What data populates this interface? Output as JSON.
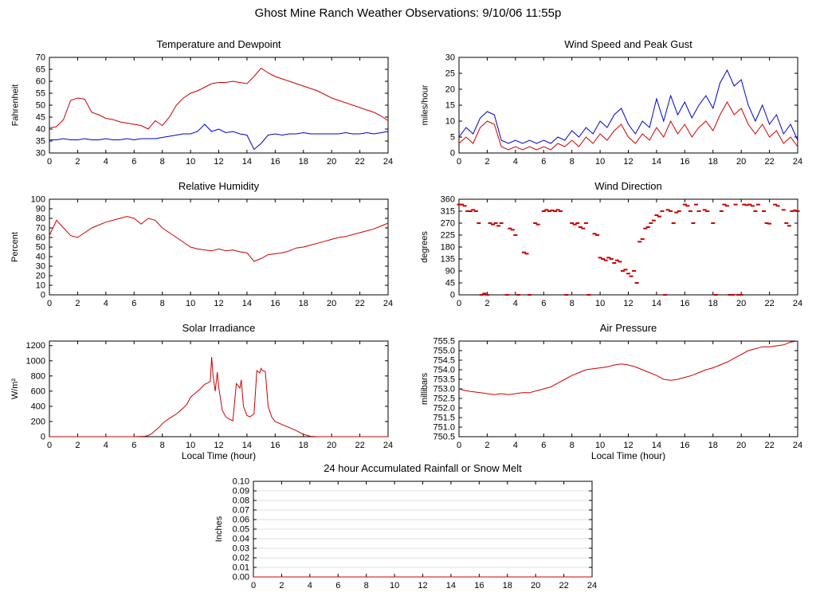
{
  "page_title": "Ghost Mine Ranch Weather Observations: 9/10/06 11:55p",
  "colors": {
    "red_series": "#cc0000",
    "blue_series": "#0000cc",
    "axis": "#000000",
    "grid": "#c0c0c0"
  },
  "chart_data": [
    {
      "id": "temperature-dewpoint",
      "type": "line",
      "title": "Temperature and Dewpoint",
      "ylabel": "Fahrenheit",
      "xlabel": "",
      "xlim": [
        0,
        24
      ],
      "ylim": [
        30,
        70
      ],
      "xticks": [
        0,
        2,
        4,
        6,
        8,
        10,
        12,
        14,
        16,
        18,
        20,
        22,
        24
      ],
      "yticks": [
        30,
        35,
        40,
        45,
        50,
        55,
        60,
        65,
        70
      ],
      "ydecimals": 0,
      "series": [
        {
          "name": "Temperature",
          "color": "#cc0000",
          "xstep": 0.5,
          "y": [
            40.5,
            41,
            44,
            52,
            53,
            52.5,
            47,
            46,
            44.5,
            44,
            43,
            42.5,
            42,
            41.5,
            40,
            43.5,
            41.5,
            45,
            50,
            53,
            55,
            56,
            57.5,
            59,
            59.5,
            59.5,
            60,
            59.5,
            59,
            62,
            65.5,
            63.5,
            62,
            61,
            60,
            59,
            58,
            57,
            56,
            54.5,
            53,
            52,
            51,
            50,
            49,
            48,
            47,
            45.5,
            43.5
          ]
        },
        {
          "name": "Dewpoint",
          "color": "#0000cc",
          "xstep": 0.5,
          "y": [
            35.5,
            35.5,
            36,
            35.5,
            35.5,
            36,
            35.5,
            35.5,
            36,
            35.5,
            35.5,
            36,
            35.5,
            36,
            36,
            36,
            36.5,
            37,
            37.5,
            38,
            38,
            39,
            42,
            39,
            40,
            38.5,
            39,
            38,
            37.5,
            31.5,
            34,
            37.5,
            38,
            37.5,
            38,
            38,
            38.5,
            38,
            38,
            38,
            38,
            38,
            38.5,
            38,
            38,
            38.5,
            38,
            38.5,
            39
          ]
        }
      ]
    },
    {
      "id": "wind-speed-gust",
      "type": "line",
      "title": "Wind Speed and Peak Gust",
      "ylabel": "miles/hour",
      "xlabel": "",
      "xlim": [
        0,
        24
      ],
      "ylim": [
        0,
        30
      ],
      "xticks": [
        0,
        2,
        4,
        6,
        8,
        10,
        12,
        14,
        16,
        18,
        20,
        22,
        24
      ],
      "yticks": [
        0,
        5,
        10,
        15,
        20,
        25,
        30
      ],
      "ydecimals": 0,
      "series": [
        {
          "name": "Peak Gust",
          "color": "#0000cc",
          "xstep": 0.5,
          "y": [
            5,
            8,
            6,
            11,
            13,
            12,
            4,
            3,
            4,
            3,
            4,
            3,
            4,
            3,
            5,
            4,
            7,
            5,
            8,
            6,
            10,
            8,
            12,
            14,
            9,
            6,
            10,
            8,
            17,
            10,
            18,
            12,
            16,
            11,
            15,
            18,
            14,
            22,
            26,
            21,
            23,
            15,
            10,
            15,
            9,
            12,
            6,
            9,
            4
          ]
        },
        {
          "name": "Wind Speed",
          "color": "#cc0000",
          "xstep": 0.5,
          "y": [
            3,
            5,
            3,
            8,
            10,
            9,
            2,
            1,
            2,
            1,
            2,
            1,
            2,
            1,
            3,
            2,
            4,
            2,
            5,
            3,
            6,
            4,
            7,
            9,
            5,
            3,
            6,
            4,
            8,
            5,
            10,
            6,
            9,
            5,
            8,
            10,
            7,
            12,
            16,
            12,
            14,
            9,
            6,
            9,
            5,
            7,
            3,
            5,
            2
          ]
        }
      ]
    },
    {
      "id": "relative-humidity",
      "type": "line",
      "title": "Relative Humidity",
      "ylabel": "Percent",
      "xlabel": "",
      "xlim": [
        0,
        24
      ],
      "ylim": [
        0,
        100
      ],
      "xticks": [
        0,
        2,
        4,
        6,
        8,
        10,
        12,
        14,
        16,
        18,
        20,
        22,
        24
      ],
      "yticks": [
        0,
        10,
        20,
        30,
        40,
        50,
        60,
        70,
        80,
        90,
        100
      ],
      "ydecimals": 0,
      "series": [
        {
          "name": "Relative Humidity",
          "color": "#cc0000",
          "xstep": 0.5,
          "y": [
            62,
            78,
            70,
            62,
            60,
            65,
            70,
            73,
            76,
            78,
            80,
            82,
            80,
            74,
            80,
            78,
            70,
            65,
            60,
            55,
            50,
            48,
            47,
            46,
            48,
            46,
            47,
            45,
            44,
            35,
            38,
            42,
            43,
            44,
            46,
            49,
            50,
            52,
            54,
            56,
            58,
            60,
            61,
            63,
            65,
            67,
            69,
            72,
            75
          ]
        }
      ]
    },
    {
      "id": "wind-direction",
      "type": "scatter",
      "title": "Wind Direction",
      "ylabel": "degrees",
      "xlabel": "",
      "xlim": [
        0,
        24
      ],
      "ylim": [
        0,
        360
      ],
      "xticks": [
        0,
        2,
        4,
        6,
        8,
        10,
        12,
        14,
        16,
        18,
        20,
        22,
        24
      ],
      "yticks": [
        0,
        45,
        90,
        135,
        180,
        225,
        270,
        315,
        360
      ],
      "ydecimals": 0,
      "series": [
        {
          "name": "Wind Direction",
          "color": "#cc0000",
          "points": [
            [
              0,
              340
            ],
            [
              0.2,
              340
            ],
            [
              0.4,
              335
            ],
            [
              0.6,
              315
            ],
            [
              0.8,
              315
            ],
            [
              1,
              320
            ],
            [
              1.2,
              315
            ],
            [
              1.4,
              270
            ],
            [
              1.6,
              0
            ],
            [
              1.8,
              5
            ],
            [
              2,
              0
            ],
            [
              2.2,
              270
            ],
            [
              2.4,
              265
            ],
            [
              2.6,
              270
            ],
            [
              2.8,
              260
            ],
            [
              3,
              270
            ],
            [
              3.4,
              0
            ],
            [
              3.6,
              250
            ],
            [
              3.8,
              245
            ],
            [
              4,
              225
            ],
            [
              4.2,
              0
            ],
            [
              4.6,
              160
            ],
            [
              4.8,
              155
            ],
            [
              5,
              0
            ],
            [
              5.4,
              270
            ],
            [
              5.6,
              265
            ],
            [
              6,
              315
            ],
            [
              6.2,
              320
            ],
            [
              6.4,
              315
            ],
            [
              6.6,
              318
            ],
            [
              6.8,
              315
            ],
            [
              7,
              320
            ],
            [
              7.2,
              315
            ],
            [
              7.6,
              0
            ],
            [
              8,
              270
            ],
            [
              8.2,
              265
            ],
            [
              8.4,
              270
            ],
            [
              8.6,
              255
            ],
            [
              8.8,
              250
            ],
            [
              9,
              270
            ],
            [
              9.2,
              0
            ],
            [
              9.6,
              230
            ],
            [
              9.8,
              225
            ],
            [
              10,
              140
            ],
            [
              10.2,
              135
            ],
            [
              10.4,
              130
            ],
            [
              10.6,
              140
            ],
            [
              10.8,
              135
            ],
            [
              11,
              120
            ],
            [
              11.2,
              130
            ],
            [
              11.4,
              125
            ],
            [
              11.6,
              90
            ],
            [
              11.8,
              95
            ],
            [
              12,
              80
            ],
            [
              12.2,
              70
            ],
            [
              12.4,
              90
            ],
            [
              12.6,
              45
            ],
            [
              12.8,
              200
            ],
            [
              13,
              210
            ],
            [
              13.2,
              250
            ],
            [
              13.4,
              255
            ],
            [
              13.6,
              270
            ],
            [
              13.8,
              280
            ],
            [
              14,
              300
            ],
            [
              14.2,
              295
            ],
            [
              14.4,
              315
            ],
            [
              14.6,
              0
            ],
            [
              14.8,
              320
            ],
            [
              15,
              315
            ],
            [
              15.2,
              270
            ],
            [
              15.4,
              310
            ],
            [
              15.6,
              315
            ],
            [
              16,
              340
            ],
            [
              16.2,
              335
            ],
            [
              16.4,
              315
            ],
            [
              16.6,
              270
            ],
            [
              16.8,
              340
            ],
            [
              17,
              315
            ],
            [
              17.4,
              320
            ],
            [
              17.6,
              315
            ],
            [
              18,
              270
            ],
            [
              18.2,
              0
            ],
            [
              18.6,
              315
            ],
            [
              18.8,
              340
            ],
            [
              19,
              335
            ],
            [
              19.2,
              0
            ],
            [
              19.4,
              0
            ],
            [
              19.6,
              340
            ],
            [
              19.8,
              0
            ],
            [
              20,
              0
            ],
            [
              20.2,
              340
            ],
            [
              20.4,
              338
            ],
            [
              20.6,
              340
            ],
            [
              20.8,
              335
            ],
            [
              21,
              315
            ],
            [
              21.2,
              340
            ],
            [
              21.6,
              315
            ],
            [
              21.8,
              270
            ],
            [
              22,
              268
            ],
            [
              22.4,
              340
            ],
            [
              22.6,
              335
            ],
            [
              23,
              320
            ],
            [
              23.2,
              270
            ],
            [
              23.4,
              260
            ],
            [
              23.6,
              315
            ],
            [
              23.8,
              318
            ],
            [
              24,
              315
            ]
          ]
        }
      ]
    },
    {
      "id": "solar-irradiance",
      "type": "line",
      "title": "Solar Irradiance",
      "ylabel": "W/m²",
      "xlabel": "Local Time (hour)",
      "xlim": [
        0,
        24
      ],
      "ylim": [
        0,
        1260
      ],
      "xticks": [
        0,
        2,
        4,
        6,
        8,
        10,
        12,
        14,
        16,
        18,
        20,
        22,
        24
      ],
      "yticks": [
        0,
        200,
        400,
        600,
        800,
        1000,
        1200
      ],
      "ydecimals": 0,
      "series": [
        {
          "name": "Solar Irradiance",
          "color": "#cc0000",
          "x": [
            0,
            6,
            6.75,
            7,
            7.25,
            7.5,
            7.75,
            8,
            8.25,
            8.5,
            8.75,
            9,
            9.25,
            9.5,
            9.75,
            10,
            10.25,
            10.5,
            10.75,
            11,
            11.25,
            11.4,
            11.5,
            11.6,
            11.75,
            11.9,
            12,
            12.25,
            12.5,
            12.75,
            13,
            13.25,
            13.5,
            13.6,
            13.75,
            14,
            14.2,
            14.5,
            14.7,
            14.9,
            15,
            15.1,
            15.3,
            15.5,
            15.75,
            16,
            16.5,
            17,
            17.5,
            18,
            18.5,
            19,
            24
          ],
          "y": [
            0,
            0,
            5,
            15,
            40,
            80,
            120,
            170,
            210,
            240,
            270,
            300,
            340,
            380,
            430,
            520,
            560,
            600,
            640,
            690,
            710,
            730,
            1050,
            800,
            600,
            850,
            650,
            350,
            260,
            230,
            210,
            700,
            640,
            750,
            400,
            280,
            260,
            300,
            870,
            840,
            900,
            870,
            860,
            400,
            260,
            200,
            160,
            120,
            80,
            30,
            5,
            0,
            0
          ]
        }
      ]
    },
    {
      "id": "air-pressure",
      "type": "line",
      "title": "Air Pressure",
      "ylabel": "millibars",
      "xlabel": "Local Time (hour)",
      "xlim": [
        0,
        24
      ],
      "ylim": [
        750.5,
        755.5
      ],
      "xticks": [
        0,
        2,
        4,
        6,
        8,
        10,
        12,
        14,
        16,
        18,
        20,
        22,
        24
      ],
      "yticks": [
        750.5,
        751,
        751.5,
        752,
        752.5,
        753,
        753.5,
        754,
        754.5,
        755,
        755.5
      ],
      "ydecimals": 1,
      "series": [
        {
          "name": "Air Pressure",
          "color": "#cc0000",
          "xstep": 0.5,
          "y": [
            753.0,
            752.9,
            752.85,
            752.8,
            752.75,
            752.7,
            752.75,
            752.7,
            752.75,
            752.8,
            752.8,
            752.9,
            753.0,
            753.1,
            753.3,
            753.5,
            753.7,
            753.85,
            754.0,
            754.05,
            754.1,
            754.15,
            754.25,
            754.3,
            754.25,
            754.15,
            754.0,
            753.85,
            753.7,
            753.5,
            753.45,
            753.5,
            753.6,
            753.7,
            753.85,
            754.0,
            754.1,
            754.25,
            754.4,
            754.6,
            754.8,
            755.0,
            755.1,
            755.2,
            755.2,
            755.25,
            755.3,
            755.45,
            755.5
          ]
        }
      ]
    },
    {
      "id": "accumulated-rainfall",
      "type": "line",
      "grid": true,
      "title": "24 hour Accumulated Rainfall or Snow Melt",
      "ylabel": "Inches",
      "xlabel": "",
      "xlim": [
        0,
        24
      ],
      "ylim": [
        0,
        0.1
      ],
      "xticks": [
        0,
        2,
        4,
        6,
        8,
        10,
        12,
        14,
        16,
        18,
        20,
        22,
        24
      ],
      "yticks": [
        0,
        0.01,
        0.02,
        0.03,
        0.04,
        0.05,
        0.06,
        0.07,
        0.08,
        0.09,
        0.1
      ],
      "ydecimals": 2,
      "series": [
        {
          "name": "Accumulated Rainfall",
          "color": "#cc0000",
          "x": [
            0,
            24
          ],
          "y": [
            0,
            0
          ]
        }
      ]
    }
  ]
}
